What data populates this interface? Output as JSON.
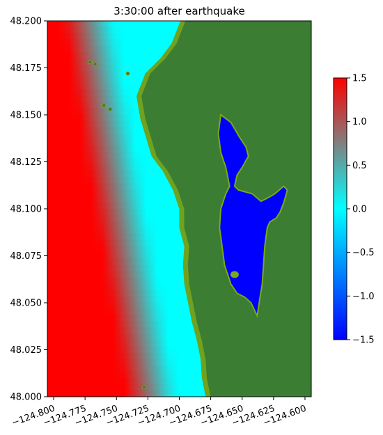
{
  "chart_data": {
    "type": "heatmap",
    "title": "3:30:00 after earthquake",
    "xlim": [
      -124.805,
      -124.595
    ],
    "ylim": [
      48.0,
      48.2
    ],
    "x_ticks": [
      -124.8,
      -124.775,
      -124.75,
      -124.725,
      -124.7,
      -124.675,
      -124.65,
      -124.625,
      -124.6
    ],
    "x_tick_labels": [
      "−124.800",
      "−124.775",
      "−124.750",
      "−124.725",
      "−124.700",
      "−124.675",
      "−124.650",
      "−124.625",
      "−124.600"
    ],
    "y_ticks": [
      48.0,
      48.025,
      48.05,
      48.075,
      48.1,
      48.125,
      48.15,
      48.175,
      48.2
    ],
    "y_tick_labels": [
      "48.000",
      "48.025",
      "48.050",
      "48.075",
      "48.100",
      "48.125",
      "48.150",
      "48.175",
      "48.200"
    ],
    "colorbar": {
      "range": [
        -1.5,
        1.5
      ],
      "ticks": [
        -1.5,
        -1.0,
        -0.5,
        0.0,
        0.5,
        1.0,
        1.5
      ],
      "tick_labels": [
        "−1.5",
        "−1.0",
        "−0.5",
        "0.0",
        "0.5",
        "1.0",
        "1.5"
      ],
      "colormap": [
        {
          "v": -1.5,
          "color": "#0000ff"
        },
        {
          "v": -0.75,
          "color": "#0080ff"
        },
        {
          "v": 0.0,
          "color": "#00ffff"
        },
        {
          "v": 0.75,
          "color": "#808080"
        },
        {
          "v": 1.5,
          "color": "#ff0000"
        }
      ]
    },
    "land_color": "#3a7d33",
    "shallow_land_color": "#7aa81c",
    "coastline": [
      [
        -124.699,
        48.2
      ],
      [
        -124.706,
        48.188
      ],
      [
        -124.715,
        48.18
      ],
      [
        -124.727,
        48.172
      ],
      [
        -124.734,
        48.16
      ],
      [
        -124.731,
        48.148
      ],
      [
        -124.726,
        48.137
      ],
      [
        -124.722,
        48.128
      ],
      [
        -124.713,
        48.12
      ],
      [
        -124.705,
        48.11
      ],
      [
        -124.7,
        48.1
      ],
      [
        -124.7,
        48.09
      ],
      [
        -124.696,
        48.08
      ],
      [
        -124.697,
        48.07
      ],
      [
        -124.696,
        48.06
      ],
      [
        -124.693,
        48.05
      ],
      [
        -124.69,
        48.04
      ],
      [
        -124.686,
        48.03
      ],
      [
        -124.683,
        48.02
      ],
      [
        -124.682,
        48.01
      ],
      [
        -124.679,
        48.0
      ]
    ],
    "lagoon_outline": [
      [
        -124.667,
        48.15
      ],
      [
        -124.659,
        48.146
      ],
      [
        -124.652,
        48.138
      ],
      [
        -124.647,
        48.133
      ],
      [
        -124.645,
        48.128
      ],
      [
        -124.65,
        48.122
      ],
      [
        -124.654,
        48.118
      ],
      [
        -124.656,
        48.112
      ],
      [
        -124.653,
        48.11
      ],
      [
        -124.642,
        48.108
      ],
      [
        -124.635,
        48.104
      ],
      [
        -124.629,
        48.106
      ],
      [
        -124.624,
        48.108
      ],
      [
        -124.617,
        48.112
      ],
      [
        -124.614,
        48.11
      ],
      [
        -124.617,
        48.103
      ],
      [
        -124.62,
        48.098
      ],
      [
        -124.623,
        48.095
      ],
      [
        -124.628,
        48.093
      ],
      [
        -124.63,
        48.09
      ],
      [
        -124.632,
        48.08
      ],
      [
        -124.633,
        48.07
      ],
      [
        -124.634,
        48.06
      ],
      [
        -124.636,
        48.052
      ],
      [
        -124.638,
        48.043
      ],
      [
        -124.643,
        48.05
      ],
      [
        -124.648,
        48.053
      ],
      [
        -124.654,
        48.055
      ],
      [
        -124.659,
        48.06
      ],
      [
        -124.664,
        48.07
      ],
      [
        -124.666,
        48.08
      ],
      [
        -124.668,
        48.09
      ],
      [
        -124.667,
        48.1
      ],
      [
        -124.663,
        48.108
      ],
      [
        -124.66,
        48.112
      ],
      [
        -124.663,
        48.122
      ],
      [
        -124.667,
        48.13
      ],
      [
        -124.669,
        48.14
      ]
    ],
    "islands": [
      [
        -124.76,
        48.155
      ],
      [
        -124.767,
        48.177
      ],
      [
        -124.771,
        48.178
      ],
      [
        -124.755,
        48.153
      ],
      [
        -124.741,
        48.172
      ],
      [
        -124.728,
        48.005
      ]
    ]
  }
}
